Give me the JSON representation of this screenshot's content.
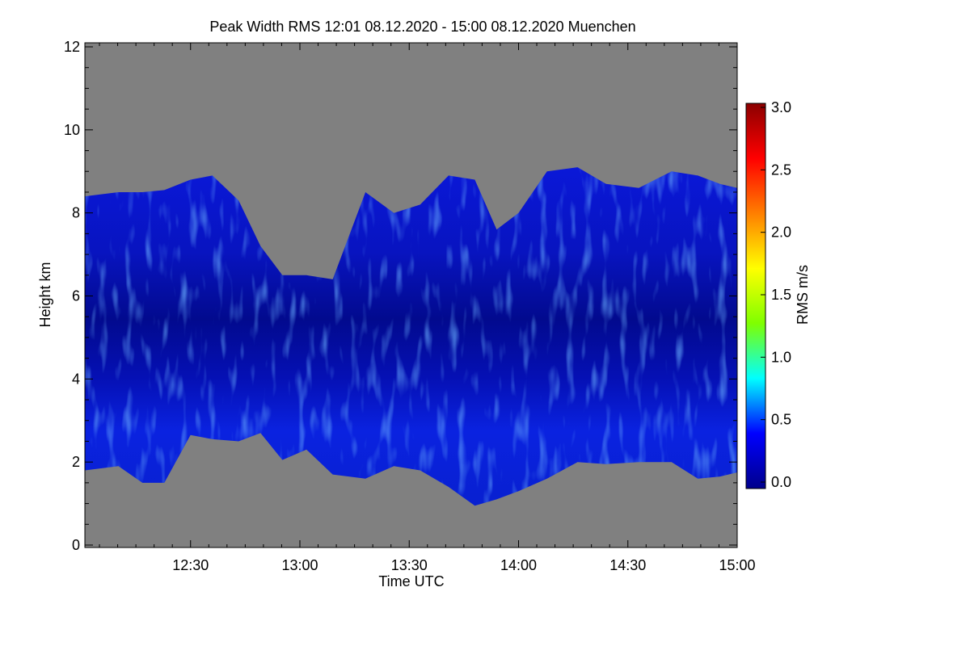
{
  "chart_data": {
    "type": "heatmap",
    "title": "Peak Width RMS   12:01 08.12.2020 - 15:00 08.12.2020 Muenchen",
    "xlabel": "Time UTC",
    "ylabel": "Height km",
    "x_range_hours": [
      12.0167,
      15.0
    ],
    "y_range_km": [
      0,
      12
    ],
    "x_ticks": [
      {
        "value": 12.5,
        "label": "12:30"
      },
      {
        "value": 13.0,
        "label": "13:00"
      },
      {
        "value": 13.5,
        "label": "13:30"
      },
      {
        "value": 14.0,
        "label": "14:00"
      },
      {
        "value": 14.5,
        "label": "14:30"
      },
      {
        "value": 15.0,
        "label": "15:00"
      }
    ],
    "y_ticks": [
      {
        "value": 0,
        "label": "0"
      },
      {
        "value": 2,
        "label": "2"
      },
      {
        "value": 4,
        "label": "4"
      },
      {
        "value": 6,
        "label": "6"
      },
      {
        "value": 8,
        "label": "8"
      },
      {
        "value": 10,
        "label": "10"
      },
      {
        "value": 12,
        "label": "12"
      }
    ],
    "colorbar": {
      "label": "RMS m/s",
      "range": [
        0.0,
        3.0
      ],
      "ticks": [
        {
          "value": 0.0,
          "label": "0.0"
        },
        {
          "value": 0.5,
          "label": "0.5"
        },
        {
          "value": 1.0,
          "label": "1.0"
        },
        {
          "value": 1.5,
          "label": "1.5"
        },
        {
          "value": 2.0,
          "label": "2.0"
        },
        {
          "value": 2.5,
          "label": "2.5"
        },
        {
          "value": 3.0,
          "label": "3.0"
        }
      ],
      "colors": [
        "#00008b",
        "#0000ff",
        "#00ffff",
        "#7fff00",
        "#ffff00",
        "#ff7f00",
        "#ff0000",
        "#8b0000"
      ]
    },
    "no_data_color": "#808080",
    "echo_layer": {
      "time_hours": [
        12.0167,
        12.17,
        12.28,
        12.38,
        12.5,
        12.6,
        12.72,
        12.82,
        12.92,
        13.03,
        13.15,
        13.3,
        13.43,
        13.55,
        13.68,
        13.8,
        13.9,
        14.0,
        14.13,
        14.27,
        14.4,
        14.55,
        14.7,
        14.82,
        14.92,
        15.0
      ],
      "base_km": [
        1.8,
        1.9,
        1.5,
        1.5,
        2.65,
        2.55,
        2.5,
        2.7,
        2.05,
        2.3,
        1.7,
        1.6,
        1.9,
        1.8,
        1.4,
        0.95,
        1.1,
        1.3,
        1.6,
        2.0,
        1.95,
        2.0,
        2.0,
        1.6,
        1.65,
        1.75
      ],
      "top_km": [
        8.4,
        8.5,
        8.5,
        8.55,
        8.8,
        8.9,
        8.3,
        7.2,
        6.5,
        6.5,
        6.4,
        8.5,
        8.0,
        8.2,
        8.9,
        8.8,
        7.6,
        8.0,
        9.0,
        9.1,
        8.7,
        8.6,
        9.0,
        8.9,
        8.7,
        8.6
      ],
      "typical_rms_ms": 0.2,
      "max_rms_ms": 0.9
    },
    "grid": false,
    "legend": "right colorbar"
  }
}
